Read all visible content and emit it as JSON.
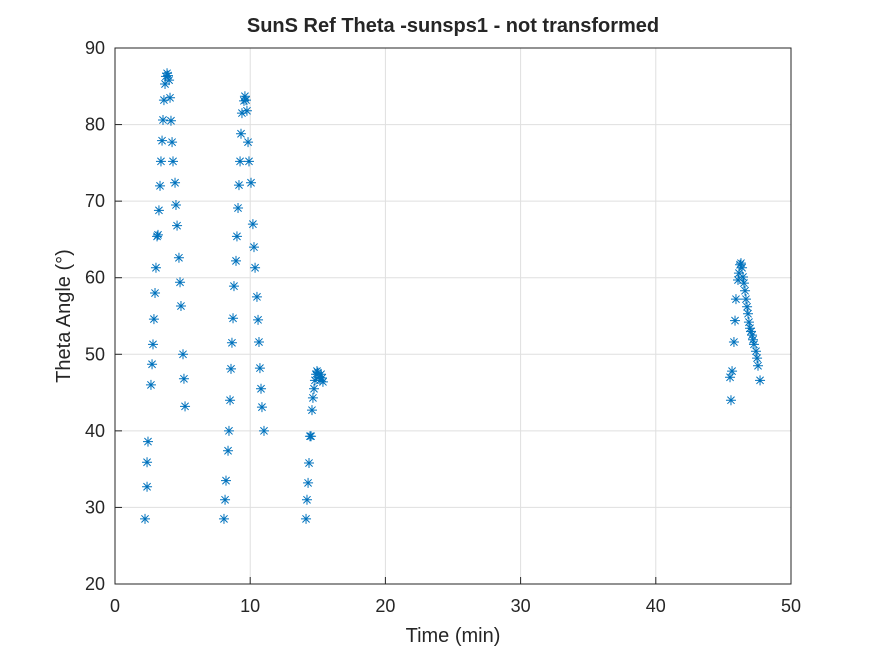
{
  "chart_data": {
    "type": "scatter",
    "title": "SunS Ref Theta -sunsps1 - not transformed",
    "x_label": "Time (min)",
    "y_label": "Theta Angle (°)",
    "xlim": [
      0,
      50
    ],
    "xticks": [
      0,
      10,
      20,
      30,
      40,
      50
    ],
    "ylim": [
      20,
      90
    ],
    "yticks": [
      20,
      30,
      40,
      50,
      60,
      70,
      80,
      90
    ],
    "grid": true,
    "color": "#0072bd",
    "x": [
      2.22,
      2.37,
      2.37,
      2.44,
      2.66,
      2.74,
      2.81,
      2.88,
      2.96,
      3.03,
      3.11,
      3.18,
      3.25,
      3.33,
      3.4,
      3.48,
      3.55,
      3.62,
      3.7,
      3.77,
      3.85,
      3.92,
      4.0,
      4.07,
      4.14,
      4.22,
      4.29,
      4.44,
      4.51,
      4.59,
      4.73,
      4.81,
      4.88,
      5.03,
      5.1,
      5.18,
      8.06,
      8.14,
      8.21,
      8.36,
      8.43,
      8.51,
      8.58,
      8.65,
      8.73,
      8.8,
      8.95,
      9.02,
      9.1,
      9.17,
      9.25,
      9.32,
      9.39,
      9.54,
      9.61,
      9.69,
      9.76,
      9.84,
      9.91,
      10.06,
      10.2,
      10.28,
      10.36,
      10.5,
      10.58,
      10.65,
      10.72,
      10.8,
      10.87,
      11.02,
      14.13,
      14.2,
      14.28,
      14.35,
      14.42,
      14.5,
      14.57,
      14.64,
      14.72,
      14.79,
      14.87,
      14.94,
      15.01,
      15.09,
      15.16,
      15.24,
      15.31,
      15.38,
      45.49,
      45.56,
      45.64,
      45.78,
      45.86,
      45.93,
      46.08,
      46.15,
      46.23,
      46.3,
      46.38,
      46.45,
      46.52,
      46.6,
      46.67,
      46.75,
      46.82,
      46.89,
      46.97,
      47.04,
      47.12,
      47.19,
      47.26,
      47.41,
      47.49,
      47.56,
      47.71
    ],
    "values": [
      28.5,
      32.7,
      35.9,
      38.6,
      46.0,
      48.7,
      51.3,
      54.6,
      58.0,
      61.3,
      65.4,
      65.6,
      68.8,
      72.0,
      75.2,
      77.9,
      80.6,
      83.2,
      85.3,
      86.3,
      86.7,
      86.4,
      85.8,
      83.5,
      80.5,
      77.7,
      75.2,
      72.4,
      69.5,
      66.8,
      62.6,
      59.4,
      56.3,
      50.0,
      46.8,
      43.2,
      28.5,
      31.0,
      33.5,
      37.4,
      40.0,
      44.0,
      48.1,
      51.5,
      54.7,
      58.9,
      62.2,
      65.4,
      69.1,
      72.1,
      75.2,
      78.8,
      81.5,
      83.1,
      83.7,
      83.2,
      81.8,
      77.7,
      75.2,
      72.4,
      67.0,
      64.0,
      61.3,
      57.5,
      54.5,
      51.6,
      48.2,
      45.5,
      43.1,
      40.0,
      28.5,
      31.0,
      33.2,
      35.8,
      39.3,
      39.3,
      42.7,
      44.3,
      45.5,
      46.6,
      47.4,
      47.8,
      47.6,
      47.0,
      46.6,
      47.4,
      46.9,
      46.4,
      47.0,
      44.0,
      47.8,
      51.6,
      54.4,
      57.2,
      59.7,
      60.6,
      61.7,
      61.9,
      61.3,
      60.1,
      59.3,
      58.3,
      57.2,
      56.2,
      55.3,
      54.2,
      53.4,
      53.0,
      52.5,
      51.9,
      51.3,
      50.4,
      49.5,
      48.5,
      46.6
    ]
  }
}
